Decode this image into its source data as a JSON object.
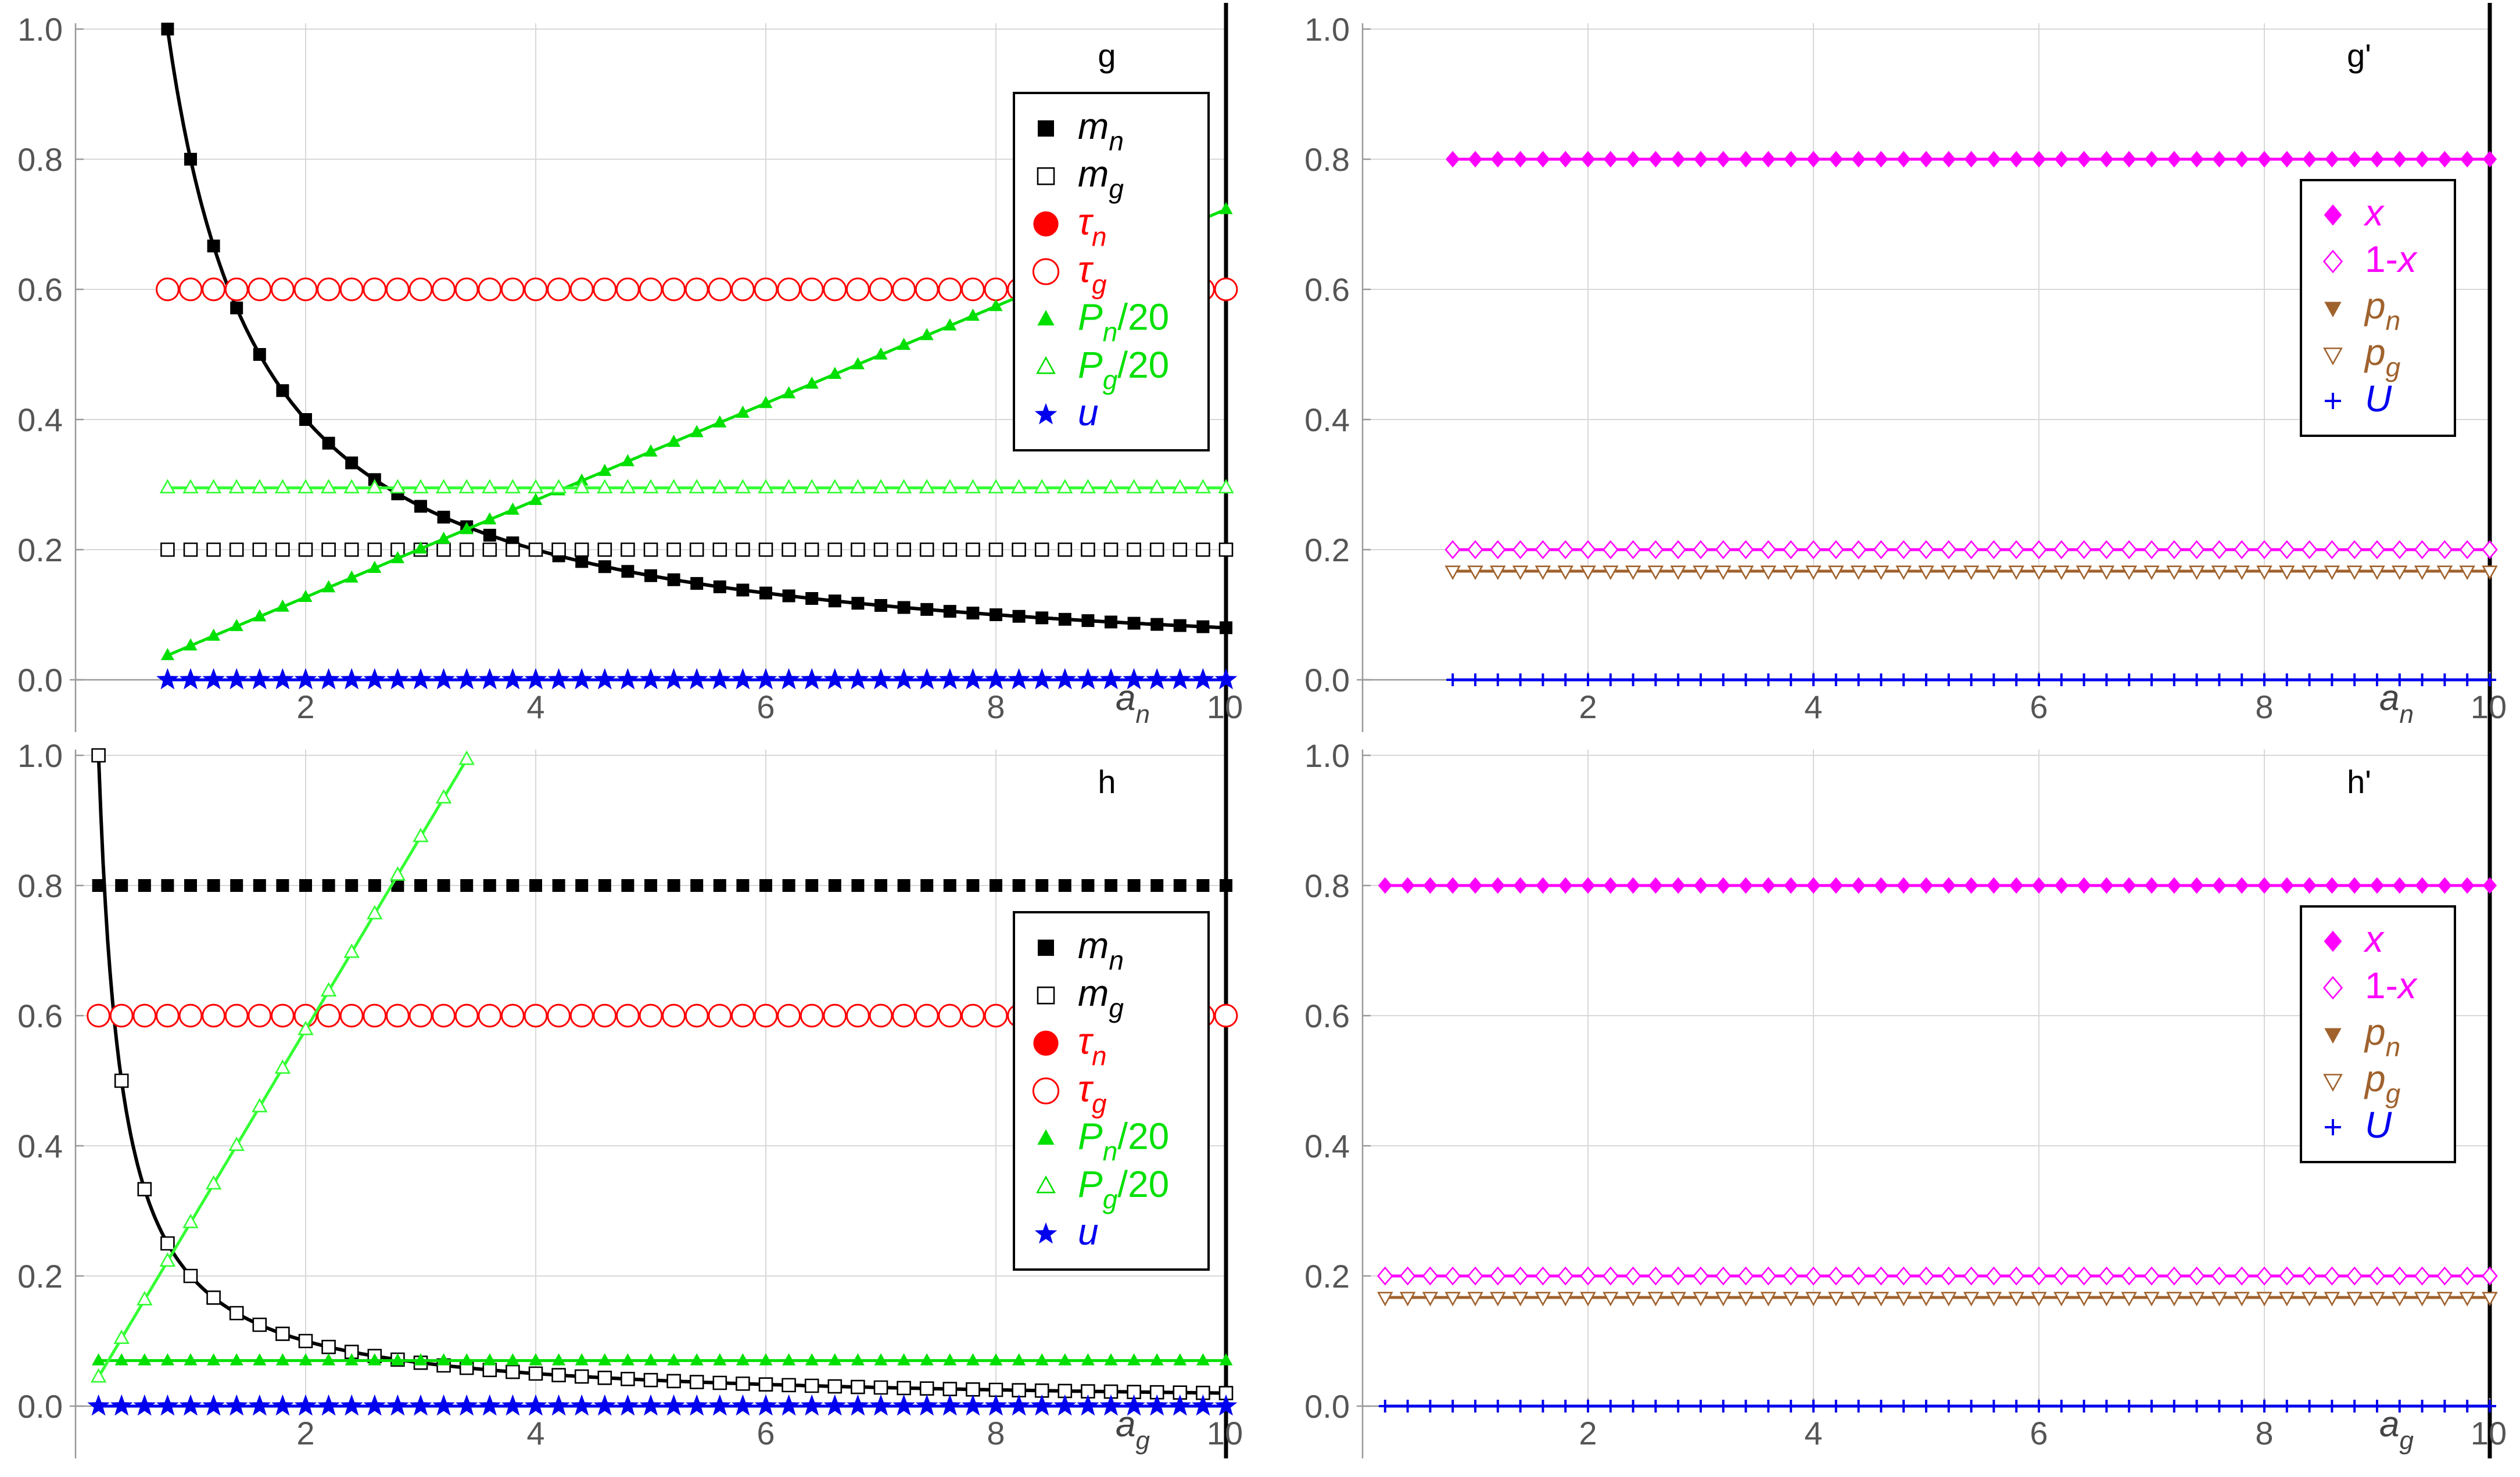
{
  "colors": {
    "black": "#000000",
    "red": "#ff0000",
    "green": "#00e000",
    "lightgreen": "#33ff33",
    "blue": "#0000ee",
    "magenta": "#ff00ff",
    "brown": "#a0622d",
    "grid": "#d8d8d8",
    "axis": "#999999"
  },
  "chart_data": [
    {
      "id": "g",
      "type": "scatter",
      "panel_label": "g",
      "xlabel_main": "a",
      "xlabel_sub": "n",
      "xlim": [
        0.0,
        10.0
      ],
      "ylim": [
        0.0,
        1.0
      ],
      "x_ticks": [
        "2",
        "4",
        "6",
        "8",
        "10"
      ],
      "y_ticks": [
        "0.0",
        "0.2",
        "0.4",
        "0.6",
        "0.8",
        "1.0"
      ],
      "legend_placement": "top-right",
      "legend": [
        {
          "marker": "square-filled",
          "color": "black",
          "main": "m",
          "sub": "n",
          "tail": ""
        },
        {
          "marker": "square-open",
          "color": "black",
          "main": "m",
          "sub": "g",
          "tail": ""
        },
        {
          "marker": "circle-filled",
          "color": "red",
          "main": "τ",
          "sub": "n",
          "tail": ""
        },
        {
          "marker": "circle-open",
          "color": "red",
          "main": "τ",
          "sub": "g",
          "tail": ""
        },
        {
          "marker": "triangle-up-filled",
          "color": "green",
          "main": "P",
          "sub": "n",
          "tail": "/20"
        },
        {
          "marker": "triangle-up-open",
          "color": "green",
          "main": "P",
          "sub": "g",
          "tail": "/20"
        },
        {
          "marker": "star",
          "color": "blue",
          "main": "u",
          "sub": "",
          "tail": ""
        }
      ],
      "series": [
        {
          "marker": "square-filled",
          "color": "black",
          "line": true,
          "x_range": [
            0.8,
            10.0
          ],
          "formula": "inv",
          "k": 0.8,
          "clip": 1.0
        },
        {
          "marker": "square-open",
          "color": "black",
          "line": false,
          "x_range": [
            0.8,
            10.0
          ],
          "formula": "const",
          "c": 0.2
        },
        {
          "marker": "circle-filled",
          "color": "red",
          "line": false,
          "x_range": [
            0.8,
            10.0
          ],
          "formula": "const",
          "c": 0.6
        },
        {
          "marker": "circle-open",
          "color": "red",
          "line": false,
          "x_range": [
            0.8,
            10.0
          ],
          "formula": "const",
          "c": 0.6
        },
        {
          "marker": "triangle-up-filled",
          "color": "green",
          "line": true,
          "x_range": [
            0.8,
            10.0
          ],
          "formula": "lin",
          "a": -0.022,
          "b": 0.0745
        },
        {
          "marker": "triangle-up-open",
          "color": "lightgreen",
          "line": true,
          "x_range": [
            0.8,
            10.0
          ],
          "formula": "const",
          "c": 0.295
        },
        {
          "marker": "star",
          "color": "blue",
          "line": true,
          "x_range": [
            0.8,
            10.0
          ],
          "formula": "const",
          "c": 0.0
        }
      ]
    },
    {
      "id": "gp",
      "type": "scatter",
      "panel_label": "g'",
      "xlabel_main": "a",
      "xlabel_sub": "n",
      "xlim": [
        0.0,
        10.0
      ],
      "ylim": [
        0.0,
        1.0
      ],
      "x_ticks": [
        "2",
        "4",
        "6",
        "8",
        "10"
      ],
      "y_ticks": [
        "0.0",
        "0.2",
        "0.4",
        "0.6",
        "0.8",
        "1.0"
      ],
      "legend_placement": "right",
      "legend": [
        {
          "marker": "diamond-filled",
          "color": "magenta",
          "main": "x",
          "sub": "",
          "tail": "",
          "pre": ""
        },
        {
          "marker": "diamond-open",
          "color": "magenta",
          "main": "x",
          "sub": "",
          "tail": "",
          "pre": "1-"
        },
        {
          "marker": "triangle-down-filled",
          "color": "brown",
          "main": "p",
          "sub": "n",
          "tail": "",
          "pre": ""
        },
        {
          "marker": "triangle-down-open",
          "color": "brown",
          "main": "p",
          "sub": "g",
          "tail": "",
          "pre": ""
        },
        {
          "marker": "plus",
          "color": "blue",
          "main": "U",
          "sub": "",
          "tail": "",
          "pre": ""
        }
      ],
      "series": [
        {
          "marker": "diamond-filled",
          "color": "magenta",
          "line": true,
          "x_range": [
            0.8,
            10.0
          ],
          "formula": "const",
          "c": 0.8
        },
        {
          "marker": "diamond-open",
          "color": "magenta",
          "line": true,
          "x_range": [
            0.8,
            10.0
          ],
          "formula": "const",
          "c": 0.2
        },
        {
          "marker": "triangle-down-filled",
          "color": "brown",
          "line": true,
          "x_range": [
            0.8,
            10.0
          ],
          "formula": "const",
          "c": 0.167
        },
        {
          "marker": "triangle-down-open",
          "color": "brown",
          "line": false,
          "x_range": [
            0.8,
            10.0
          ],
          "formula": "const",
          "c": 0.167
        },
        {
          "marker": "plus",
          "color": "blue",
          "line": true,
          "x_range": [
            0.8,
            10.0
          ],
          "formula": "const",
          "c": 0.0
        }
      ]
    },
    {
      "id": "h",
      "type": "scatter",
      "panel_label": "h",
      "xlabel_main": "a",
      "xlabel_sub": "g",
      "xlim": [
        0.0,
        10.0
      ],
      "ylim": [
        0.0,
        1.0
      ],
      "x_ticks": [
        "2",
        "4",
        "6",
        "8",
        "10"
      ],
      "y_ticks": [
        "0.0",
        "0.2",
        "0.4",
        "0.6",
        "0.8",
        "1.0"
      ],
      "legend_placement": "right",
      "legend": [
        {
          "marker": "square-filled",
          "color": "black",
          "main": "m",
          "sub": "n",
          "tail": ""
        },
        {
          "marker": "square-open",
          "color": "black",
          "main": "m",
          "sub": "g",
          "tail": ""
        },
        {
          "marker": "circle-filled",
          "color": "red",
          "main": "τ",
          "sub": "n",
          "tail": ""
        },
        {
          "marker": "circle-open",
          "color": "red",
          "main": "τ",
          "sub": "g",
          "tail": ""
        },
        {
          "marker": "triangle-up-filled",
          "color": "green",
          "main": "P",
          "sub": "n",
          "tail": "/20"
        },
        {
          "marker": "triangle-up-open",
          "color": "green",
          "main": "P",
          "sub": "g",
          "tail": "/20"
        },
        {
          "marker": "star",
          "color": "blue",
          "main": "u",
          "sub": "",
          "tail": ""
        }
      ],
      "series": [
        {
          "marker": "square-filled",
          "color": "black",
          "line": false,
          "x_range": [
            0.2,
            10.0
          ],
          "formula": "const",
          "c": 0.8
        },
        {
          "marker": "square-open",
          "color": "black",
          "line": true,
          "x_range": [
            0.2,
            10.0
          ],
          "formula": "inv",
          "k": 0.2,
          "clip": 1.0
        },
        {
          "marker": "circle-filled",
          "color": "red",
          "line": false,
          "x_range": [
            0.2,
            10.0
          ],
          "formula": "const",
          "c": 0.6
        },
        {
          "marker": "circle-open",
          "color": "red",
          "line": false,
          "x_range": [
            0.2,
            10.0
          ],
          "formula": "const",
          "c": 0.6
        },
        {
          "marker": "triangle-up-filled",
          "color": "green",
          "line": true,
          "x_range": [
            0.2,
            10.0
          ],
          "formula": "const",
          "c": 0.07
        },
        {
          "marker": "triangle-up-open",
          "color": "lightgreen",
          "line": true,
          "x_range": [
            0.2,
            3.4
          ],
          "formula": "lin",
          "a": -0.0146,
          "b": 0.2966
        },
        {
          "marker": "star",
          "color": "blue",
          "line": true,
          "x_range": [
            0.2,
            10.0
          ],
          "formula": "const",
          "c": 0.0
        }
      ]
    },
    {
      "id": "hp",
      "type": "scatter",
      "panel_label": "h'",
      "xlabel_main": "a",
      "xlabel_sub": "g",
      "xlim": [
        0.0,
        10.0
      ],
      "ylim": [
        0.0,
        1.0
      ],
      "x_ticks": [
        "2",
        "4",
        "6",
        "8",
        "10"
      ],
      "y_ticks": [
        "0.0",
        "0.2",
        "0.4",
        "0.6",
        "0.8",
        "1.0"
      ],
      "legend_placement": "right",
      "legend": [
        {
          "marker": "diamond-filled",
          "color": "magenta",
          "main": "x",
          "sub": "",
          "tail": "",
          "pre": ""
        },
        {
          "marker": "diamond-open",
          "color": "magenta",
          "main": "x",
          "sub": "",
          "tail": "",
          "pre": "1-"
        },
        {
          "marker": "triangle-down-filled",
          "color": "brown",
          "main": "p",
          "sub": "n",
          "tail": "",
          "pre": ""
        },
        {
          "marker": "triangle-down-open",
          "color": "brown",
          "main": "p",
          "sub": "g",
          "tail": "",
          "pre": ""
        },
        {
          "marker": "plus",
          "color": "blue",
          "main": "U",
          "sub": "",
          "tail": "",
          "pre": ""
        }
      ],
      "series": [
        {
          "marker": "diamond-filled",
          "color": "magenta",
          "line": true,
          "x_range": [
            0.2,
            10.0
          ],
          "formula": "const",
          "c": 0.8
        },
        {
          "marker": "diamond-open",
          "color": "magenta",
          "line": true,
          "x_range": [
            0.2,
            10.0
          ],
          "formula": "const",
          "c": 0.2
        },
        {
          "marker": "triangle-down-filled",
          "color": "brown",
          "line": true,
          "x_range": [
            0.2,
            10.0
          ],
          "formula": "const",
          "c": 0.167
        },
        {
          "marker": "triangle-down-open",
          "color": "brown",
          "line": false,
          "x_range": [
            0.2,
            10.0
          ],
          "formula": "const",
          "c": 0.167
        },
        {
          "marker": "plus",
          "color": "blue",
          "line": true,
          "x_range": [
            0.2,
            10.0
          ],
          "formula": "const",
          "c": 0.0
        }
      ]
    }
  ]
}
